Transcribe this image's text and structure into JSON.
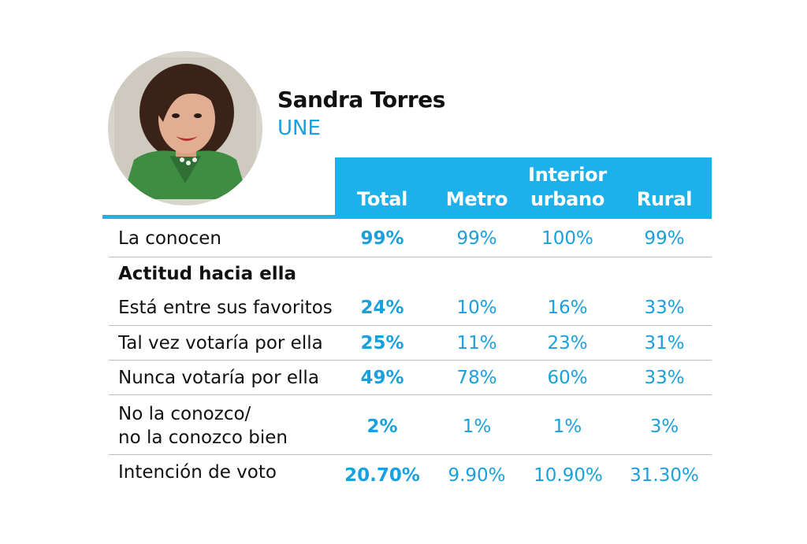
{
  "candidate": {
    "name": "Sandra Torres",
    "party": "UNE"
  },
  "table": {
    "headers": [
      "Total",
      "Metro",
      "Interior urbano",
      "Rural"
    ],
    "header_lines": {
      "interior_1": "Interior",
      "interior_2": "urbano"
    },
    "section_title": "Actitud hacia ella",
    "rows": [
      {
        "label": "La conocen",
        "values": [
          "99%",
          "99%",
          "100%",
          "99%"
        ]
      },
      {
        "label": "Está entre sus favoritos",
        "values": [
          "24%",
          "10%",
          "16%",
          "33%"
        ]
      },
      {
        "label": "Tal vez votaría por ella",
        "values": [
          "25%",
          "11%",
          "23%",
          "31%"
        ]
      },
      {
        "label": "Nunca votaría por ella",
        "values": [
          "49%",
          "78%",
          "60%",
          "33%"
        ]
      },
      {
        "label": "No la conozco/",
        "label_line2": "no la conozco bien",
        "values": [
          "2%",
          "1%",
          "1%",
          "3%"
        ]
      },
      {
        "label": "Intención de voto",
        "values": [
          "20.70%",
          "9.90%",
          "10.90%",
          "31.30%"
        ]
      }
    ]
  },
  "colors": {
    "accent": "#1db1eb",
    "value_text": "#1aa0dc",
    "portrait_ring": "#d6d4cb"
  },
  "icons": {
    "portrait": "person-portrait-icon"
  }
}
